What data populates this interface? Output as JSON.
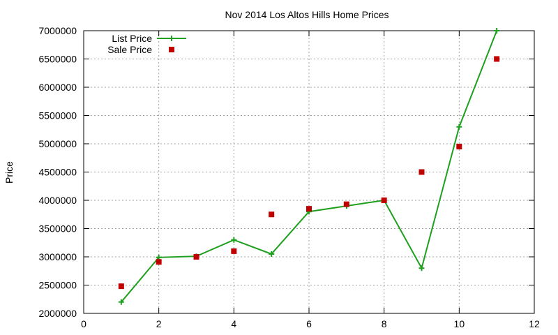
{
  "chart_data": {
    "type": "line",
    "title": "Nov 2014 Los Altos Hills Home Prices",
    "xlabel": "",
    "ylabel": "Price",
    "xlim": [
      0,
      12
    ],
    "ylim": [
      2000000,
      7000000
    ],
    "xticks": [
      0,
      2,
      4,
      6,
      8,
      10,
      12
    ],
    "yticks": [
      2000000,
      2500000,
      3000000,
      3500000,
      4000000,
      4500000,
      5000000,
      5500000,
      6000000,
      6500000,
      7000000
    ],
    "grid": true,
    "legend_position": "top-left",
    "series": [
      {
        "name": "List Price",
        "style": "line+cross",
        "color": "#1ea01e",
        "x": [
          1,
          2,
          3,
          4,
          5,
          6,
          7,
          8,
          9,
          10,
          11
        ],
        "y": [
          2200000,
          2990000,
          3010000,
          3300000,
          3050000,
          3800000,
          3900000,
          4000000,
          2800000,
          5300000,
          7000000
        ]
      },
      {
        "name": "Sale Price",
        "style": "square-points",
        "color": "#c00000",
        "x": [
          1,
          2,
          3,
          4,
          5,
          6,
          7,
          8,
          9,
          10,
          11
        ],
        "y": [
          2480000,
          2910000,
          3000000,
          3100000,
          3750000,
          3850000,
          3930000,
          4000000,
          4500000,
          4950000,
          6500000
        ]
      }
    ]
  }
}
